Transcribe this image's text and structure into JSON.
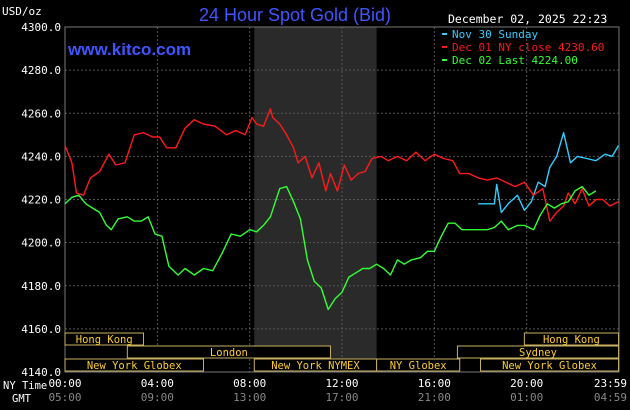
{
  "chart_data": {
    "type": "line",
    "title": "24 Hour Spot Gold (Bid)",
    "ylabel": "USD/oz",
    "date_time": "December 02, 2025 22:23",
    "watermark": "www.kitco.com",
    "ylim": [
      4140,
      4300
    ],
    "yticks": [
      "4300.0",
      "4280.0",
      "4260.0",
      "4240.0",
      "4220.0",
      "4200.0",
      "4180.0",
      "4160.0",
      "4140.0"
    ],
    "ytick_values": [
      4300,
      4280,
      4260,
      4240,
      4220,
      4200,
      4180,
      4160,
      4140
    ],
    "x_range_hours": [
      0,
      24
    ],
    "xaxis_row_labels": {
      "ny": "NY Time",
      "gmt": "GMT"
    },
    "xticks_ny": [
      "00:00",
      "04:00",
      "08:00",
      "12:00",
      "16:00",
      "20:00",
      "23:59"
    ],
    "xticks_gmt": [
      "05:00",
      "09:00",
      "13:00",
      "17:00",
      "21:00",
      "01:00",
      "04:59"
    ],
    "xtick_hours": [
      0,
      4,
      8,
      12,
      16,
      20,
      23.983
    ],
    "highlight_session_hours": [
      8.2,
      13.5
    ],
    "grid": true,
    "legend_position": "top-right",
    "series": [
      {
        "name": "Nov 30 Sunday",
        "color": "#33ccff",
        "points": [
          [
            17.9,
            4218
          ],
          [
            18.6,
            4218
          ],
          [
            18.7,
            4227
          ],
          [
            18.9,
            4214
          ],
          [
            19.2,
            4218
          ],
          [
            19.6,
            4222
          ],
          [
            19.9,
            4215
          ],
          [
            20.2,
            4219
          ],
          [
            20.5,
            4228
          ],
          [
            20.8,
            4226
          ],
          [
            21.0,
            4235
          ],
          [
            21.3,
            4240
          ],
          [
            21.6,
            4251
          ],
          [
            21.9,
            4237
          ],
          [
            22.2,
            4240
          ],
          [
            22.6,
            4239
          ],
          [
            23.0,
            4238
          ],
          [
            23.4,
            4241
          ],
          [
            23.7,
            4240
          ],
          [
            23.98,
            4245
          ]
        ]
      },
      {
        "name": "Dec 01 NY close 4230.60",
        "color": "#ff1a1a",
        "points": [
          [
            0,
            4245
          ],
          [
            0.3,
            4237
          ],
          [
            0.5,
            4223
          ],
          [
            0.8,
            4222
          ],
          [
            1.1,
            4230
          ],
          [
            1.5,
            4233
          ],
          [
            1.9,
            4241
          ],
          [
            2.2,
            4236
          ],
          [
            2.6,
            4237
          ],
          [
            3.0,
            4250
          ],
          [
            3.4,
            4251
          ],
          [
            3.8,
            4249
          ],
          [
            4.1,
            4249
          ],
          [
            4.4,
            4244
          ],
          [
            4.8,
            4244
          ],
          [
            5.2,
            4253
          ],
          [
            5.6,
            4257
          ],
          [
            6.0,
            4255
          ],
          [
            6.5,
            4254
          ],
          [
            7.0,
            4250
          ],
          [
            7.4,
            4252
          ],
          [
            7.8,
            4250
          ],
          [
            8.1,
            4258
          ],
          [
            8.3,
            4255
          ],
          [
            8.6,
            4254
          ],
          [
            8.9,
            4262
          ],
          [
            9.0,
            4258
          ],
          [
            9.3,
            4255
          ],
          [
            9.6,
            4250
          ],
          [
            9.9,
            4244
          ],
          [
            10.1,
            4237
          ],
          [
            10.4,
            4240
          ],
          [
            10.7,
            4230
          ],
          [
            11.0,
            4237
          ],
          [
            11.3,
            4224
          ],
          [
            11.5,
            4232
          ],
          [
            11.8,
            4224
          ],
          [
            12.1,
            4236
          ],
          [
            12.4,
            4229
          ],
          [
            12.7,
            4232
          ],
          [
            13.0,
            4233
          ],
          [
            13.3,
            4239
          ],
          [
            13.7,
            4240
          ],
          [
            14.0,
            4238
          ],
          [
            14.4,
            4240
          ],
          [
            14.8,
            4238
          ],
          [
            15.2,
            4242
          ],
          [
            15.6,
            4238
          ],
          [
            16.0,
            4241
          ],
          [
            16.4,
            4239
          ],
          [
            16.8,
            4238
          ],
          [
            17.1,
            4232
          ],
          [
            17.5,
            4232
          ],
          [
            17.9,
            4230
          ],
          [
            18.3,
            4229
          ],
          [
            18.7,
            4230
          ],
          [
            19.1,
            4228
          ],
          [
            19.5,
            4226
          ],
          [
            19.9,
            4228
          ],
          [
            20.3,
            4222
          ],
          [
            20.7,
            4225
          ],
          [
            21.0,
            4210
          ],
          [
            21.3,
            4214
          ],
          [
            21.6,
            4217
          ],
          [
            21.8,
            4223
          ],
          [
            22.1,
            4218
          ],
          [
            22.4,
            4225
          ],
          [
            22.7,
            4217
          ],
          [
            23.0,
            4220
          ],
          [
            23.3,
            4220
          ],
          [
            23.6,
            4217
          ],
          [
            23.98,
            4219
          ]
        ]
      },
      {
        "name": "Dec 02 Last 4224.00",
        "color": "#33ff33",
        "points": [
          [
            0,
            4218
          ],
          [
            0.3,
            4221
          ],
          [
            0.6,
            4222
          ],
          [
            0.9,
            4218
          ],
          [
            1.2,
            4216
          ],
          [
            1.5,
            4214
          ],
          [
            1.8,
            4208
          ],
          [
            2.0,
            4206
          ],
          [
            2.3,
            4211
          ],
          [
            2.7,
            4212
          ],
          [
            3.0,
            4210
          ],
          [
            3.3,
            4210
          ],
          [
            3.6,
            4212
          ],
          [
            3.9,
            4204
          ],
          [
            4.2,
            4203
          ],
          [
            4.5,
            4189
          ],
          [
            4.9,
            4185
          ],
          [
            5.2,
            4188
          ],
          [
            5.6,
            4185
          ],
          [
            6.0,
            4188
          ],
          [
            6.4,
            4187
          ],
          [
            6.8,
            4195
          ],
          [
            7.2,
            4204
          ],
          [
            7.6,
            4203
          ],
          [
            8.0,
            4206
          ],
          [
            8.3,
            4205
          ],
          [
            8.6,
            4208
          ],
          [
            8.9,
            4212
          ],
          [
            9.3,
            4225
          ],
          [
            9.6,
            4226
          ],
          [
            9.9,
            4219
          ],
          [
            10.2,
            4211
          ],
          [
            10.5,
            4192
          ],
          [
            10.8,
            4182
          ],
          [
            11.1,
            4179
          ],
          [
            11.4,
            4169
          ],
          [
            11.7,
            4174
          ],
          [
            12.0,
            4177
          ],
          [
            12.3,
            4184
          ],
          [
            12.6,
            4186
          ],
          [
            12.9,
            4188
          ],
          [
            13.2,
            4188
          ],
          [
            13.5,
            4190
          ],
          [
            13.8,
            4188
          ],
          [
            14.1,
            4185
          ],
          [
            14.4,
            4192
          ],
          [
            14.7,
            4190
          ],
          [
            15.0,
            4192
          ],
          [
            15.4,
            4193
          ],
          [
            15.7,
            4196
          ],
          [
            16.0,
            4196
          ],
          [
            16.3,
            4203
          ],
          [
            16.6,
            4209
          ],
          [
            16.9,
            4209
          ],
          [
            17.2,
            4206
          ],
          [
            17.6,
            4206
          ],
          [
            17.9,
            4206
          ],
          [
            18.3,
            4206
          ],
          [
            18.6,
            4207
          ],
          [
            18.9,
            4210
          ],
          [
            19.2,
            4206
          ],
          [
            19.6,
            4208
          ],
          [
            19.9,
            4208
          ],
          [
            20.3,
            4206
          ],
          [
            20.6,
            4213
          ],
          [
            20.9,
            4218
          ],
          [
            21.2,
            4216
          ],
          [
            21.5,
            4218
          ],
          [
            21.8,
            4219
          ],
          [
            22.1,
            4224
          ],
          [
            22.4,
            4226
          ],
          [
            22.7,
            4222
          ],
          [
            23.0,
            4224
          ]
        ]
      }
    ],
    "market_sessions": [
      {
        "name": "Hong Kong",
        "start_hour": 0,
        "end_hour": 3.4,
        "row": 0
      },
      {
        "name": "London",
        "start_hour": 2.7,
        "end_hour": 11.5,
        "row": 1
      },
      {
        "name": "New York Globex",
        "start_hour": 0,
        "end_hour": 6.0,
        "row": 2
      },
      {
        "name": "New York NYMEX",
        "start_hour": 8.2,
        "end_hour": 13.5,
        "row": 2
      },
      {
        "name": "NY Globex",
        "start_hour": 13.5,
        "end_hour": 17.1,
        "row": 2
      },
      {
        "name": "Hong Kong",
        "start_hour": 19.9,
        "end_hour": 23.98,
        "row": 0
      },
      {
        "name": "Sydney",
        "start_hour": 17.0,
        "end_hour": 23.98,
        "row": 1
      },
      {
        "name": "New York Globex",
        "start_hour": 18.0,
        "end_hour": 23.98,
        "row": 2
      }
    ]
  }
}
